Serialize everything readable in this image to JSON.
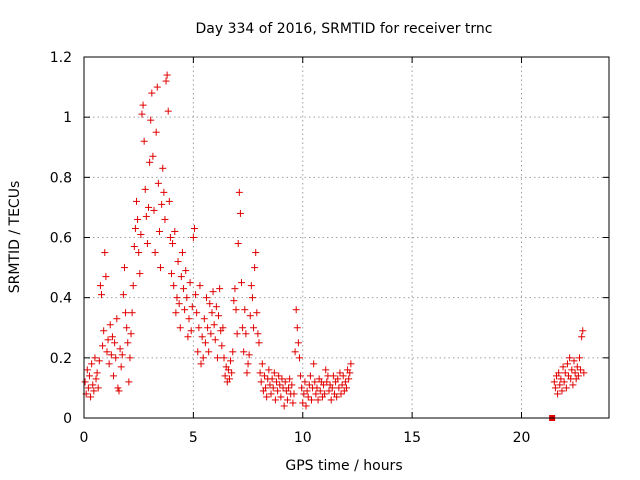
{
  "chart_data": {
    "type": "scatter",
    "title": "Day 334 of 2016, SRMTID for receiver trnc",
    "xlabel": "GPS time / hours",
    "ylabel": "SRMTID / TECUs",
    "xlim": [
      0,
      24
    ],
    "ylim": [
      0,
      1.2
    ],
    "xticks": [
      0,
      5,
      10,
      15,
      20
    ],
    "yticks": [
      0,
      0.2,
      0.4,
      0.6,
      0.8,
      1,
      1.2
    ],
    "xtick_labels": [
      "0",
      "5",
      "10",
      "15",
      "20"
    ],
    "ytick_labels": [
      "0",
      "0.2",
      "0.4",
      "0.6",
      "0.8",
      "1",
      "1.2"
    ],
    "grid": true,
    "marker": "plus",
    "color": "#e00000",
    "series": [
      {
        "name": "SRMTID",
        "points": [
          [
            0.05,
            0.12
          ],
          [
            0.1,
            0.08
          ],
          [
            0.15,
            0.16
          ],
          [
            0.2,
            0.1
          ],
          [
            0.25,
            0.14
          ],
          [
            0.3,
            0.07
          ],
          [
            0.35,
            0.18
          ],
          [
            0.4,
            0.11
          ],
          [
            0.45,
            0.09
          ],
          [
            0.5,
            0.2
          ],
          [
            0.55,
            0.13
          ],
          [
            0.6,
            0.15
          ],
          [
            0.65,
            0.1
          ],
          [
            0.7,
            0.19
          ],
          [
            0.75,
            0.44
          ],
          [
            0.8,
            0.41
          ],
          [
            0.85,
            0.24
          ],
          [
            0.9,
            0.29
          ],
          [
            0.95,
            0.55
          ],
          [
            1.0,
            0.47
          ],
          [
            1.05,
            0.22
          ],
          [
            1.1,
            0.26
          ],
          [
            1.15,
            0.18
          ],
          [
            1.2,
            0.31
          ],
          [
            1.25,
            0.21
          ],
          [
            1.3,
            0.27
          ],
          [
            1.35,
            0.14
          ],
          [
            1.4,
            0.25
          ],
          [
            1.45,
            0.2
          ],
          [
            1.5,
            0.33
          ],
          [
            1.55,
            0.1
          ],
          [
            1.6,
            0.09
          ],
          [
            1.65,
            0.23
          ],
          [
            1.7,
            0.17
          ],
          [
            1.75,
            0.21
          ],
          [
            1.8,
            0.41
          ],
          [
            1.85,
            0.5
          ],
          [
            1.9,
            0.35
          ],
          [
            1.95,
            0.3
          ],
          [
            2.0,
            0.25
          ],
          [
            2.05,
            0.12
          ],
          [
            2.1,
            0.2
          ],
          [
            2.15,
            0.28
          ],
          [
            2.2,
            0.35
          ],
          [
            2.25,
            0.44
          ],
          [
            2.3,
            0.57
          ],
          [
            2.35,
            0.63
          ],
          [
            2.4,
            0.72
          ],
          [
            2.45,
            0.66
          ],
          [
            2.5,
            0.55
          ],
          [
            2.55,
            0.48
          ],
          [
            2.6,
            0.61
          ],
          [
            2.65,
            1.01
          ],
          [
            2.7,
            1.04
          ],
          [
            2.75,
            0.92
          ],
          [
            2.8,
            0.76
          ],
          [
            2.85,
            0.67
          ],
          [
            2.9,
            0.58
          ],
          [
            2.95,
            0.7
          ],
          [
            3.0,
            0.85
          ],
          [
            3.05,
            0.99
          ],
          [
            3.1,
            1.08
          ],
          [
            3.15,
            0.87
          ],
          [
            3.2,
            0.69
          ],
          [
            3.25,
            0.55
          ],
          [
            3.3,
            0.95
          ],
          [
            3.35,
            1.1
          ],
          [
            3.4,
            0.78
          ],
          [
            3.45,
            0.62
          ],
          [
            3.5,
            0.5
          ],
          [
            3.55,
            0.71
          ],
          [
            3.6,
            0.83
          ],
          [
            3.65,
            0.75
          ],
          [
            3.7,
            0.66
          ],
          [
            3.75,
            1.12
          ],
          [
            3.8,
            1.14
          ],
          [
            3.85,
            1.02
          ],
          [
            3.9,
            0.72
          ],
          [
            3.95,
            0.6
          ],
          [
            4.0,
            0.48
          ],
          [
            4.05,
            0.58
          ],
          [
            4.1,
            0.44
          ],
          [
            4.15,
            0.62
          ],
          [
            4.2,
            0.35
          ],
          [
            4.25,
            0.4
          ],
          [
            4.3,
            0.52
          ],
          [
            4.35,
            0.38
          ],
          [
            4.4,
            0.3
          ],
          [
            4.45,
            0.47
          ],
          [
            4.5,
            0.55
          ],
          [
            4.55,
            0.43
          ],
          [
            4.6,
            0.36
          ],
          [
            4.65,
            0.49
          ],
          [
            4.7,
            0.4
          ],
          [
            4.75,
            0.27
          ],
          [
            4.8,
            0.33
          ],
          [
            4.85,
            0.45
          ],
          [
            4.9,
            0.29
          ],
          [
            4.95,
            0.37
          ],
          [
            5.0,
            0.6
          ],
          [
            5.05,
            0.63
          ],
          [
            5.1,
            0.41
          ],
          [
            5.15,
            0.35
          ],
          [
            5.2,
            0.22
          ],
          [
            5.25,
            0.3
          ],
          [
            5.3,
            0.44
          ],
          [
            5.35,
            0.18
          ],
          [
            5.4,
            0.27
          ],
          [
            5.45,
            0.2
          ],
          [
            5.5,
            0.33
          ],
          [
            5.55,
            0.25
          ],
          [
            5.6,
            0.4
          ],
          [
            5.65,
            0.3
          ],
          [
            5.7,
            0.22
          ],
          [
            5.75,
            0.38
          ],
          [
            5.8,
            0.28
          ],
          [
            5.85,
            0.35
          ],
          [
            5.9,
            0.42
          ],
          [
            5.95,
            0.31
          ],
          [
            6.0,
            0.26
          ],
          [
            6.05,
            0.37
          ],
          [
            6.1,
            0.2
          ],
          [
            6.15,
            0.34
          ],
          [
            6.2,
            0.43
          ],
          [
            6.25,
            0.29
          ],
          [
            6.3,
            0.24
          ],
          [
            6.35,
            0.3
          ],
          [
            6.4,
            0.2
          ],
          [
            6.45,
            0.14
          ],
          [
            6.5,
            0.17
          ],
          [
            6.55,
            0.12
          ],
          [
            6.6,
            0.16
          ],
          [
            6.65,
            0.13
          ],
          [
            6.7,
            0.19
          ],
          [
            6.75,
            0.15
          ],
          [
            6.8,
            0.22
          ],
          [
            6.85,
            0.39
          ],
          [
            6.9,
            0.43
          ],
          [
            6.95,
            0.36
          ],
          [
            7.0,
            0.28
          ],
          [
            7.05,
            0.58
          ],
          [
            7.1,
            0.75
          ],
          [
            7.15,
            0.68
          ],
          [
            7.2,
            0.45
          ],
          [
            7.25,
            0.3
          ],
          [
            7.3,
            0.22
          ],
          [
            7.35,
            0.36
          ],
          [
            7.4,
            0.28
          ],
          [
            7.45,
            0.15
          ],
          [
            7.5,
            0.18
          ],
          [
            7.55,
            0.21
          ],
          [
            7.6,
            0.34
          ],
          [
            7.65,
            0.44
          ],
          [
            7.7,
            0.4
          ],
          [
            7.75,
            0.3
          ],
          [
            7.8,
            0.5
          ],
          [
            7.85,
            0.55
          ],
          [
            7.9,
            0.35
          ],
          [
            7.95,
            0.28
          ],
          [
            8.0,
            0.25
          ],
          [
            8.05,
            0.15
          ],
          [
            8.1,
            0.12
          ],
          [
            8.15,
            0.18
          ],
          [
            8.2,
            0.09
          ],
          [
            8.25,
            0.14
          ],
          [
            8.3,
            0.1
          ],
          [
            8.35,
            0.07
          ],
          [
            8.4,
            0.13
          ],
          [
            8.45,
            0.16
          ],
          [
            8.5,
            0.11
          ],
          [
            8.55,
            0.08
          ],
          [
            8.6,
            0.13
          ],
          [
            8.65,
            0.1
          ],
          [
            8.7,
            0.15
          ],
          [
            8.75,
            0.06
          ],
          [
            8.8,
            0.12
          ],
          [
            8.85,
            0.09
          ],
          [
            8.9,
            0.14
          ],
          [
            8.95,
            0.11
          ],
          [
            9.0,
            0.07
          ],
          [
            9.05,
            0.13
          ],
          [
            9.1,
            0.1
          ],
          [
            9.15,
            0.04
          ],
          [
            9.2,
            0.12
          ],
          [
            9.25,
            0.09
          ],
          [
            9.3,
            0.06
          ],
          [
            9.35,
            0.1
          ],
          [
            9.4,
            0.13
          ],
          [
            9.45,
            0.08
          ],
          [
            9.5,
            0.11
          ],
          [
            9.55,
            0.05
          ],
          [
            9.6,
            0.08
          ],
          [
            9.65,
            0.22
          ],
          [
            9.7,
            0.36
          ],
          [
            9.75,
            0.3
          ],
          [
            9.8,
            0.25
          ],
          [
            9.85,
            0.2
          ],
          [
            9.9,
            0.14
          ],
          [
            9.95,
            0.1
          ],
          [
            10.0,
            0.05
          ],
          [
            10.05,
            0.08
          ],
          [
            10.1,
            0.12
          ],
          [
            10.15,
            0.04
          ],
          [
            10.2,
            0.09
          ],
          [
            10.25,
            0.07
          ],
          [
            10.3,
            0.11
          ],
          [
            10.35,
            0.14
          ],
          [
            10.4,
            0.06
          ],
          [
            10.45,
            0.1
          ],
          [
            10.5,
            0.18
          ],
          [
            10.55,
            0.12
          ],
          [
            10.6,
            0.08
          ],
          [
            10.65,
            0.1
          ],
          [
            10.7,
            0.06
          ],
          [
            10.75,
            0.13
          ],
          [
            10.8,
            0.09
          ],
          [
            10.85,
            0.12
          ],
          [
            10.9,
            0.07
          ],
          [
            10.95,
            0.11
          ],
          [
            11.0,
            0.08
          ],
          [
            11.05,
            0.16
          ],
          [
            11.1,
            0.12
          ],
          [
            11.15,
            0.14
          ],
          [
            11.2,
            0.09
          ],
          [
            11.25,
            0.11
          ],
          [
            11.3,
            0.06
          ],
          [
            11.35,
            0.1
          ],
          [
            11.4,
            0.14
          ],
          [
            11.45,
            0.08
          ],
          [
            11.5,
            0.12
          ],
          [
            11.55,
            0.07
          ],
          [
            11.6,
            0.13
          ],
          [
            11.65,
            0.1
          ],
          [
            11.7,
            0.15
          ],
          [
            11.75,
            0.08
          ],
          [
            11.8,
            0.11
          ],
          [
            11.85,
            0.14
          ],
          [
            11.9,
            0.09
          ],
          [
            11.95,
            0.12
          ],
          [
            12.0,
            0.1
          ],
          [
            12.05,
            0.16
          ],
          [
            12.1,
            0.13
          ],
          [
            12.15,
            0.15
          ],
          [
            12.2,
            0.18
          ],
          [
            21.5,
            0.12
          ],
          [
            21.55,
            0.1
          ],
          [
            21.6,
            0.14
          ],
          [
            21.65,
            0.08
          ],
          [
            21.7,
            0.15
          ],
          [
            21.75,
            0.11
          ],
          [
            21.8,
            0.13
          ],
          [
            21.85,
            0.09
          ],
          [
            21.9,
            0.17
          ],
          [
            21.95,
            0.12
          ],
          [
            22.0,
            0.15
          ],
          [
            22.05,
            0.1
          ],
          [
            22.1,
            0.18
          ],
          [
            22.15,
            0.14
          ],
          [
            22.2,
            0.2
          ],
          [
            22.25,
            0.13
          ],
          [
            22.3,
            0.16
          ],
          [
            22.35,
            0.11
          ],
          [
            22.4,
            0.19
          ],
          [
            22.45,
            0.15
          ],
          [
            22.5,
            0.13
          ],
          [
            22.55,
            0.17
          ],
          [
            22.6,
            0.14
          ],
          [
            22.65,
            0.2
          ],
          [
            22.7,
            0.16
          ],
          [
            22.75,
            0.27
          ],
          [
            22.8,
            0.29
          ],
          [
            22.85,
            0.15
          ]
        ]
      }
    ],
    "extra_marker": {
      "shape": "square",
      "x": 21.4,
      "y": 0.0
    }
  }
}
